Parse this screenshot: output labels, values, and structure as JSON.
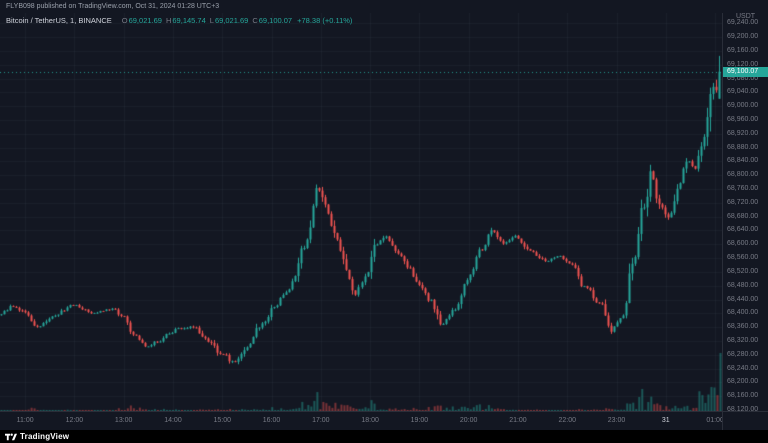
{
  "header": {
    "publish_text": "FLYB098 published on TradingView.com, Oct 31, 2024 01:28 UTC+3"
  },
  "legend": {
    "title": "Bitcoin / TetherUS, 1, BINANCE",
    "o_label": "O",
    "o": "69,021.69",
    "h_label": "H",
    "h": "69,145.74",
    "l_label": "L",
    "l": "69,021.69",
    "c_label": "C",
    "c": "69,100.07",
    "change": "+78.38 (+0.11%)"
  },
  "axes": {
    "currency": "USDT",
    "last_price_label": "69,100.07",
    "time_ticks": [
      {
        "h": 11,
        "label": "11:00"
      },
      {
        "h": 12,
        "label": "12:00"
      },
      {
        "h": 13,
        "label": "13:00"
      },
      {
        "h": 14,
        "label": "14:00"
      },
      {
        "h": 15,
        "label": "15:00"
      },
      {
        "h": 16,
        "label": "16:00"
      },
      {
        "h": 17,
        "label": "17:00"
      },
      {
        "h": 18,
        "label": "18:00"
      },
      {
        "h": 19,
        "label": "19:00"
      },
      {
        "h": 20,
        "label": "20:00"
      },
      {
        "h": 21,
        "label": "21:00"
      },
      {
        "h": 22,
        "label": "22:00"
      },
      {
        "h": 23,
        "label": "23:00"
      },
      {
        "h": 24,
        "label": "31",
        "emph": true
      },
      {
        "h": 25,
        "label": "01:00"
      }
    ]
  },
  "footer": {
    "brand": "TradingView"
  },
  "colors": {
    "up": "#26a69a",
    "down": "#ef5350",
    "background": "#131722",
    "grid": "#1e222d",
    "axis_text": "#787b86",
    "text": "#d1d4dc",
    "label_bg": "#26a69a"
  },
  "chart_data": {
    "type": "candlestick",
    "symbol": "Bitcoin / TetherUS",
    "interval": "1",
    "exchange": "BINANCE",
    "currency": "USDT",
    "ohlc": {
      "open": 69021.69,
      "high": 69145.74,
      "low": 69021.69,
      "close": 69100.07
    },
    "change": 78.38,
    "change_percent": 0.11,
    "last_price": 69100.07,
    "y_axis": {
      "tick_min": 68120,
      "tick_max": 69240,
      "step": 40
    },
    "x_axis": {
      "first_label": "11:00",
      "last_label": "01:00",
      "day_change_label": "31"
    },
    "price_path": [
      [
        10.49,
        68395
      ],
      [
        10.8,
        68420
      ],
      [
        11.0,
        68405
      ],
      [
        11.3,
        68360
      ],
      [
        11.6,
        68390
      ],
      [
        12.0,
        68425
      ],
      [
        12.4,
        68402
      ],
      [
        12.8,
        68412
      ],
      [
        13.05,
        68390
      ],
      [
        13.25,
        68340
      ],
      [
        13.5,
        68305
      ],
      [
        13.75,
        68318
      ],
      [
        13.95,
        68340
      ],
      [
        14.15,
        68355
      ],
      [
        14.45,
        68360
      ],
      [
        14.75,
        68320
      ],
      [
        15.0,
        68285
      ],
      [
        15.3,
        68258
      ],
      [
        15.55,
        68300
      ],
      [
        15.85,
        68370
      ],
      [
        16.1,
        68420
      ],
      [
        16.4,
        68470
      ],
      [
        16.7,
        68590
      ],
      [
        17.0,
        68755
      ],
      [
        17.15,
        68705
      ],
      [
        17.35,
        68620
      ],
      [
        17.6,
        68510
      ],
      [
        17.75,
        68460
      ],
      [
        17.95,
        68505
      ],
      [
        18.15,
        68600
      ],
      [
        18.35,
        68625
      ],
      [
        18.6,
        68570
      ],
      [
        18.8,
        68535
      ],
      [
        19.0,
        68485
      ],
      [
        19.25,
        68440
      ],
      [
        19.5,
        68368
      ],
      [
        19.75,
        68410
      ],
      [
        20.0,
        68500
      ],
      [
        20.3,
        68585
      ],
      [
        20.5,
        68640
      ],
      [
        20.75,
        68605
      ],
      [
        21.0,
        68622
      ],
      [
        21.3,
        68578
      ],
      [
        21.6,
        68552
      ],
      [
        21.9,
        68565
      ],
      [
        22.1,
        68545
      ],
      [
        22.4,
        68478
      ],
      [
        22.7,
        68432
      ],
      [
        22.95,
        68352
      ],
      [
        23.15,
        68390
      ],
      [
        23.4,
        68555
      ],
      [
        23.6,
        68705
      ],
      [
        23.75,
        68795
      ],
      [
        23.95,
        68710
      ],
      [
        24.1,
        68672
      ],
      [
        24.3,
        68770
      ],
      [
        24.5,
        68845
      ],
      [
        24.62,
        68815
      ],
      [
        24.8,
        68905
      ],
      [
        24.9,
        68975
      ],
      [
        24.96,
        69050
      ],
      [
        25.0,
        69140
      ],
      [
        25.04,
        68980
      ],
      [
        25.08,
        69040
      ],
      [
        25.14,
        69100
      ]
    ]
  }
}
